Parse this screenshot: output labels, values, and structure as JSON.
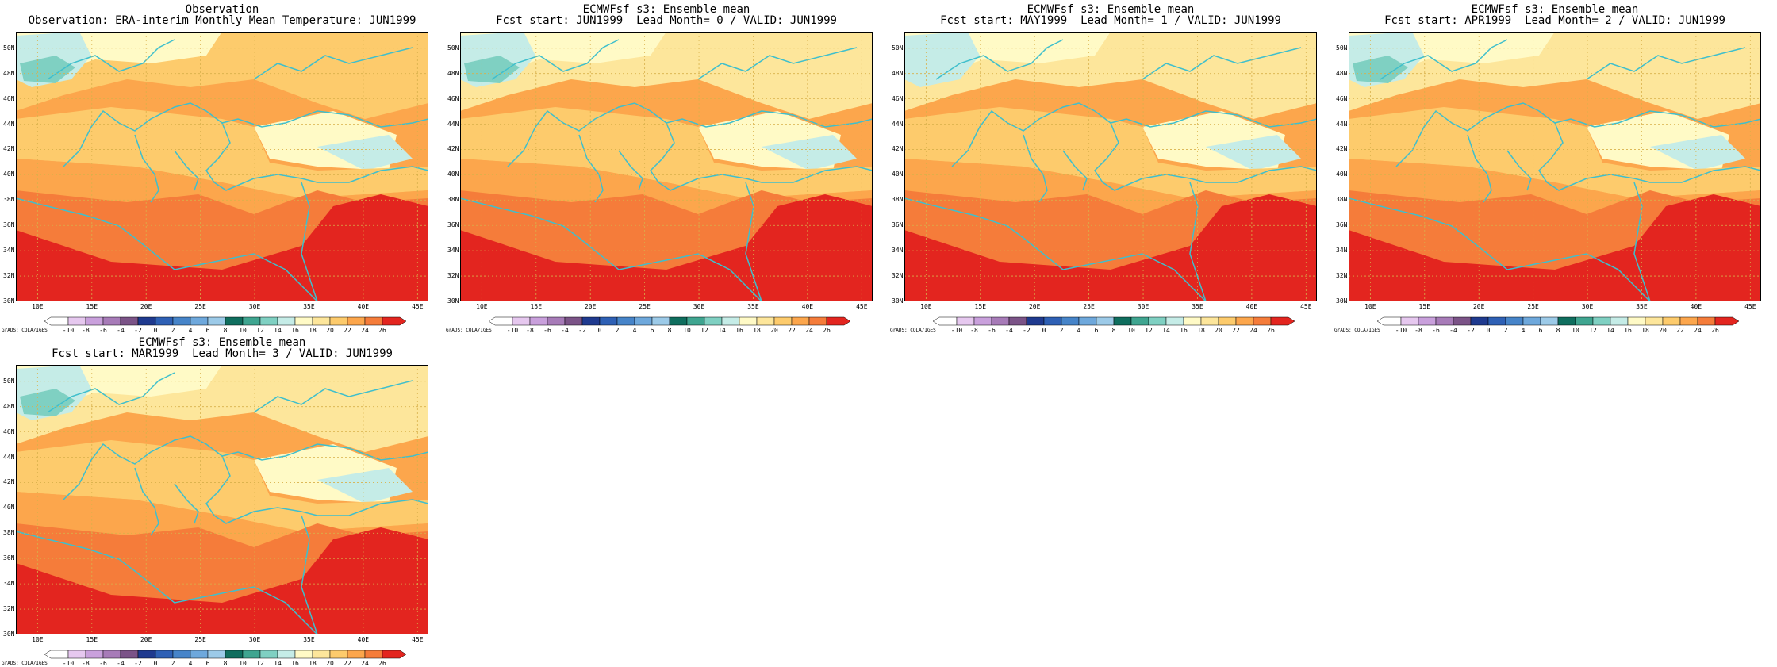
{
  "panels": [
    {
      "line1": "Observation",
      "line2": "Observation: ERA-interim Monthly Mean Temperature: JUN1999"
    },
    {
      "line1": "ECMWFsf s3: Ensemble mean",
      "line2": "Fcst start: JUN1999  Lead Month= 0 / VALID: JUN1999"
    },
    {
      "line1": "ECMWFsf s3: Ensemble mean",
      "line2": "Fcst start: MAY1999  Lead Month= 1 / VALID: JUN1999"
    },
    {
      "line1": "ECMWFsf s3: Ensemble mean",
      "line2": "Fcst start: APR1999  Lead Month= 2 / VALID: JUN1999"
    },
    {
      "line1": "ECMWFsf s3: Ensemble mean",
      "line2": "Fcst start: MAR1999  Lead Month= 3 / VALID: JUN1999"
    }
  ],
  "lat_labels": [
    "50N",
    "48N",
    "46N",
    "44N",
    "42N",
    "40N",
    "38N",
    "36N",
    "34N",
    "32N",
    "30N"
  ],
  "lon_labels": [
    "10E",
    "15E",
    "20E",
    "25E",
    "30E",
    "35E",
    "40E",
    "45E"
  ],
  "colorbar": {
    "labels": [
      "-10",
      "-8",
      "-6",
      "-4",
      "-2",
      "0",
      "2",
      "4",
      "6",
      "8",
      "10",
      "12",
      "14",
      "16",
      "18",
      "20",
      "22",
      "24",
      "26"
    ],
    "colors": [
      "#ffffff",
      "#e6c8ef",
      "#c9a0dc",
      "#a77bb8",
      "#7b5387",
      "#1f3a8f",
      "#2e60b5",
      "#4684c9",
      "#6ea8dc",
      "#9ccae8",
      "#0f6e5e",
      "#3fa590",
      "#7fd0c2",
      "#c5ece7",
      "#fffac6",
      "#fde69b",
      "#fdcb6c",
      "#fca64c",
      "#f57c3a",
      "#e3251f"
    ]
  },
  "footer": "GrADS: COLA/IGES",
  "map_style": {
    "coast_color": "#3fbfcc",
    "grid_color": "#d8b04a"
  }
}
